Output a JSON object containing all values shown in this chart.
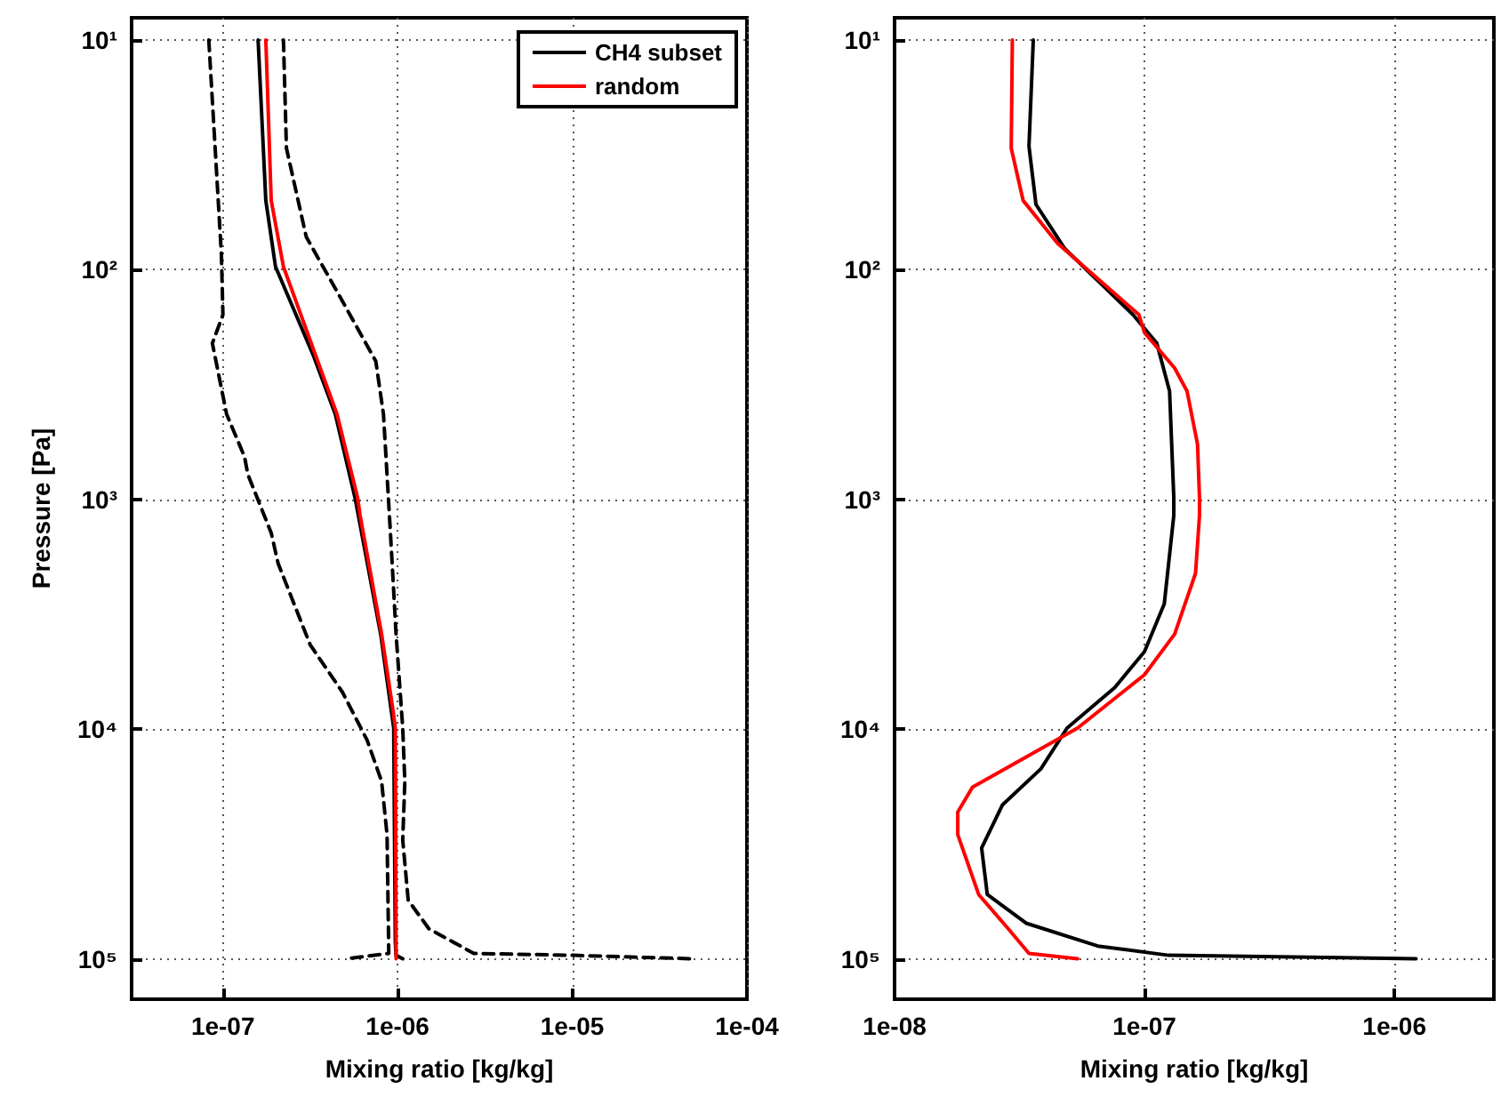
{
  "chart_data": [
    {
      "type": "line",
      "xlabel": "Mixing ratio [kg/kg]",
      "ylabel": "Pressure [Pa]",
      "log": "xy",
      "grid": true,
      "legend": "top right",
      "marker": "none",
      "xlim": [
        3e-08,
        0.0001
      ],
      "xticks": [
        {
          "value": 1e-07,
          "label": "1e-07"
        },
        {
          "value": 1e-06,
          "label": "1e-06"
        },
        {
          "value": 1e-05,
          "label": "1e-05"
        },
        {
          "value": 0.0001,
          "label": "1e-04"
        }
      ],
      "ylim": [
        150000,
        8
      ],
      "yticks": [
        {
          "value": 10,
          "label": "10¹"
        },
        {
          "value": 100,
          "label": "10²"
        },
        {
          "value": 1000,
          "label": "10³"
        },
        {
          "value": 10000,
          "label": "10⁴"
        },
        {
          "value": 100000,
          "label": "10⁵"
        }
      ],
      "series": [
        {
          "name": "CH4 subset",
          "color": "#000000",
          "line_style": "solid",
          "x": [
            1.59e-07,
            1.76e-07,
            2e-07,
            3.3e-07,
            4.4e-07,
            5.7e-07,
            8e-07,
            9.5e-07,
            9.7e-07,
            9.8e-07,
            1.07e-06
          ],
          "values": [
            10,
            50,
            97,
            237,
            426,
            982,
            3860,
            9900,
            83700,
            96600,
            100000
          ]
        },
        {
          "name": "random",
          "color": "#ff0000",
          "line_style": "solid",
          "x": [
            1.76e-07,
            1.89e-07,
            2.22e-07,
            3.4e-07,
            4.5e-07,
            5.9e-07,
            6.1e-07,
            8.1e-07,
            9.5e-07,
            9.7e-07,
            9.8e-07,
            9.8e-07
          ],
          "values": [
            10,
            50,
            97,
            237,
            426,
            982,
            1175,
            3860,
            8700,
            9900,
            83700,
            100000
          ]
        },
        {
          "color": "#000000",
          "line_style": "dashed",
          "x": [
            8.3e-08,
            9.8e-08,
            1e-07,
            8.7e-08,
            1.05e-07,
            1.33e-07,
            1.39e-07,
            1.89e-07,
            2.07e-07,
            3.16e-07,
            4.83e-07,
            6.7e-07,
            8.1e-07,
            8.7e-07,
            8.9e-07,
            5.06e-07
          ],
          "values": [
            10,
            86,
            157,
            209,
            426,
            653,
            780,
            1400,
            1900,
            4300,
            6900,
            11200,
            16900,
            28800,
            94800,
            100000
          ]
        },
        {
          "color": "#000000",
          "line_style": "dashed",
          "x": [
            2.22e-07,
            2.31e-07,
            3e-07,
            4.7e-07,
            7.5e-07,
            8.3e-07,
            9.1e-07,
            9.8e-07,
            1.07e-06,
            1.1e-06,
            1.07e-06,
            1.15e-06,
            1.51e-06,
            2.73e-06,
            1.02e-05,
            4.9e-05
          ],
          "values": [
            10,
            29.6,
            72,
            132,
            250,
            426,
            1400,
            3860,
            9900,
            16900,
            30400,
            55600,
            74000,
            94800,
            96600,
            100000
          ]
        }
      ]
    },
    {
      "type": "line",
      "xlabel": "Mixing ratio [kg/kg]",
      "log": "xy",
      "grid": true,
      "marker": "none",
      "xlim": [
        1e-08,
        2.5e-06
      ],
      "xticks": [
        {
          "value": 1e-08,
          "label": "1e-08"
        },
        {
          "value": 1e-07,
          "label": "1e-07"
        },
        {
          "value": 1e-06,
          "label": "1e-06"
        }
      ],
      "ylim": [
        150000,
        8
      ],
      "yticks": [
        {
          "value": 10,
          "label": "10¹"
        },
        {
          "value": 100,
          "label": "10²"
        },
        {
          "value": 1000,
          "label": "10³"
        },
        {
          "value": 10000,
          "label": "10⁴"
        },
        {
          "value": 100000,
          "label": "10⁵"
        }
      ],
      "series": [
        {
          "color": "#000000",
          "line_style": "solid",
          "x": [
            3.59e-08,
            3.45e-08,
            3.68e-08,
            4.8e-08,
            9e-08,
            1.12e-07,
            1.26e-07,
            1.31e-07,
            1.31e-07,
            1.2e-07,
            1e-07,
            7.6e-08,
            4.9e-08,
            3.85e-08,
            2.7e-08,
            2.23e-08,
            2.35e-08,
            3.36e-08,
            6.5e-08,
            1.25e-07,
            1.22e-06
          ],
          "values": [
            10,
            29,
            52,
            81,
            157,
            209,
            338,
            982,
            1175,
            2850,
            4600,
            6600,
            9900,
            14900,
            21400,
            32900,
            52500,
            70000,
            88000,
            96600,
            100000
          ]
        },
        {
          "color": "#ff0000",
          "line_style": "solid",
          "x": [
            2.96e-08,
            2.93e-08,
            3.27e-08,
            4.5e-08,
            9.5e-08,
            1e-07,
            1.32e-07,
            1.48e-07,
            1.63e-07,
            1.66e-07,
            1.66e-07,
            1.6e-07,
            1.32e-07,
            1e-07,
            5.4e-08,
            2.05e-08,
            1.79e-08,
            1.79e-08,
            2.17e-08,
            2.85e-08,
            3.45e-08,
            5.4e-08
          ],
          "values": [
            10,
            29.6,
            50,
            77,
            157,
            188,
            268,
            338,
            575,
            982,
            1175,
            2100,
            3860,
            5800,
            9900,
            17900,
            23000,
            28800,
            52500,
            74000,
            94800,
            100000
          ]
        }
      ]
    }
  ]
}
